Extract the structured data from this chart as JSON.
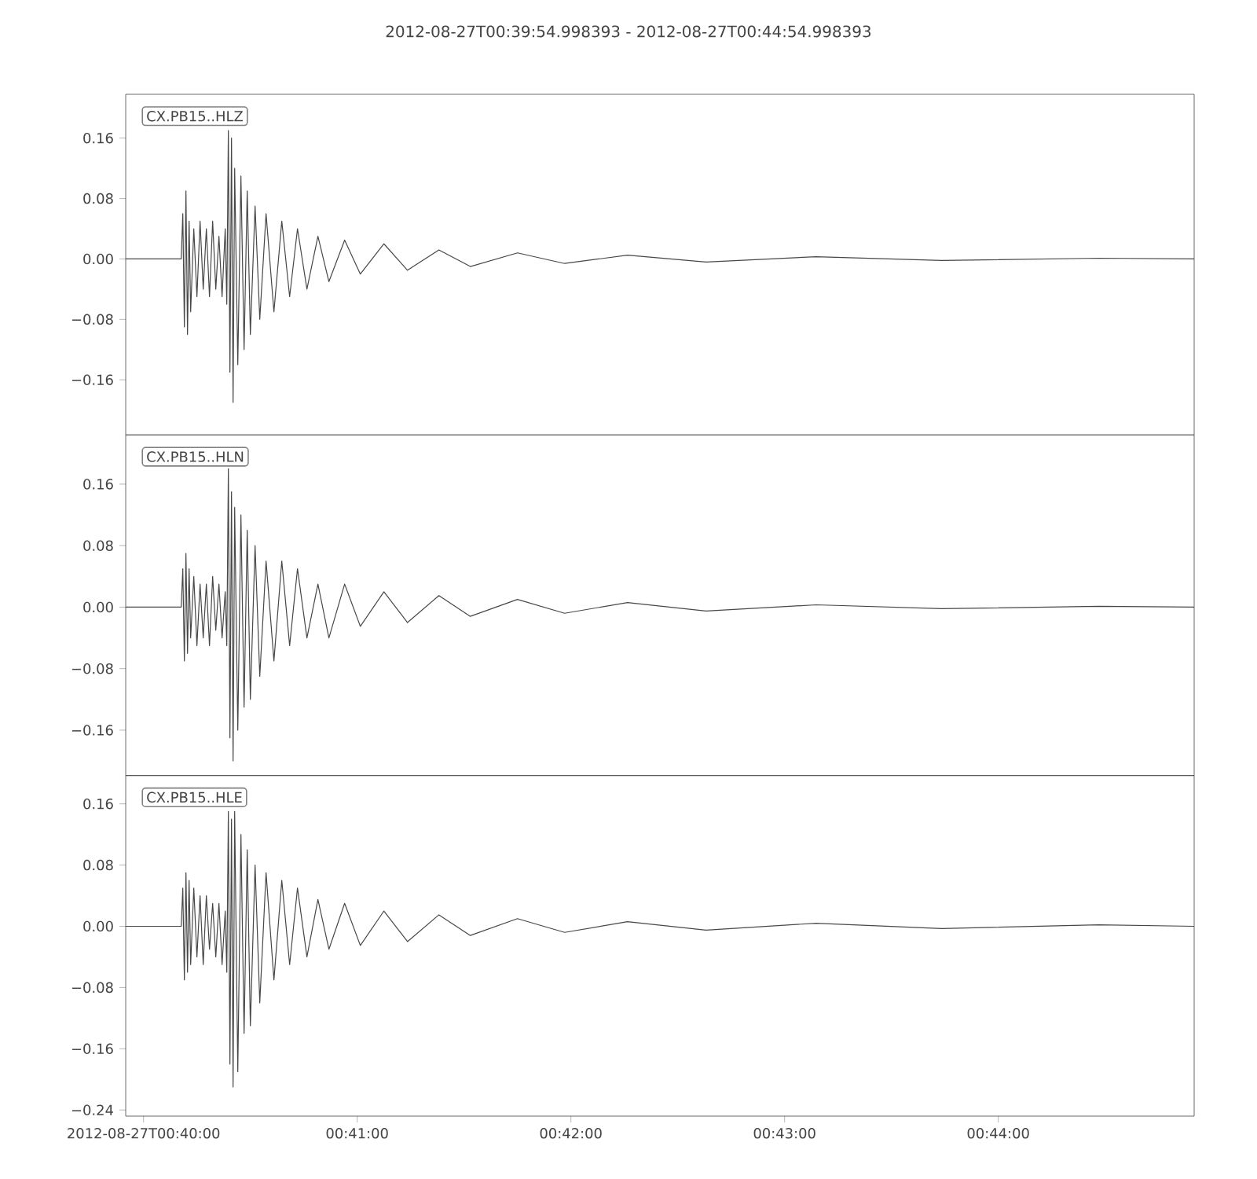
{
  "chart_data": [
    {
      "type": "line",
      "title": "2012-08-27T00:39:54.998393  -  2012-08-27T00:44:54.998393",
      "annotations": [
        "CX.PB15..HLZ"
      ],
      "tick_labels": "y",
      "xlim": [
        0.665277,
        0.748611
      ],
      "ylim": [
        -0.233,
        0.218
      ],
      "yticks": [
        {
          "value": -0.16,
          "label": "−0.16"
        },
        {
          "value": -0.08,
          "label": "−0.08"
        },
        {
          "value": 0,
          "label": "0.00"
        },
        {
          "value": 0.08,
          "label": "0.08"
        },
        {
          "value": 0.16,
          "label": "0.16"
        }
      ],
      "x": [
        0.665277,
        0.669608,
        0.669731,
        0.669853,
        0.669976,
        0.670098,
        0.670221,
        0.670343,
        0.670588,
        0.670833,
        0.671078,
        0.671323,
        0.671568,
        0.671813,
        0.672059,
        0.672304,
        0.672549,
        0.672794,
        0.673039,
        0.673162,
        0.673284,
        0.673407,
        0.673529,
        0.673652,
        0.673775,
        0.67402,
        0.674265,
        0.67451,
        0.674755,
        0.675,
        0.675368,
        0.675735,
        0.676225,
        0.676838,
        0.677451,
        0.678064,
        0.678676,
        0.679412,
        0.68027,
        0.681127,
        0.682353,
        0.683578,
        0.685417,
        0.687255,
        0.689706,
        0.692157,
        0.695833,
        0.69951,
        0.704412,
        0.710539,
        0.719118,
        0.728922,
        0.741176,
        0.748611
      ],
      "series": [
        {
          "color": "#474747",
          "values": [
            0,
            0,
            0.06,
            -0.09,
            0.09,
            -0.1,
            0.05,
            -0.07,
            0.04,
            -0.05,
            0.05,
            -0.04,
            0.04,
            -0.05,
            0.05,
            -0.04,
            0.03,
            -0.05,
            0.04,
            -0.06,
            0.17,
            -0.15,
            0.16,
            -0.19,
            0.12,
            -0.14,
            0.11,
            -0.12,
            0.09,
            -0.1,
            0.07,
            -0.08,
            0.06,
            -0.07,
            0.05,
            -0.05,
            0.04,
            -0.04,
            0.03,
            -0.03,
            0.025,
            -0.02,
            0.02,
            -0.015,
            0.012,
            -0.01,
            0.008,
            -0.006,
            0.005,
            -0.004,
            0.003,
            -0.002,
            0.001,
            0
          ]
        }
      ]
    },
    {
      "type": "line",
      "annotations": [
        "CX.PB15..HLN"
      ],
      "tick_labels": "y",
      "xlim": [
        0.665277,
        0.748611
      ],
      "ylim": [
        -0.219,
        0.224
      ],
      "yticks": [
        {
          "value": -0.16,
          "label": "−0.16"
        },
        {
          "value": -0.08,
          "label": "−0.08"
        },
        {
          "value": 0,
          "label": "0.00"
        },
        {
          "value": 0.08,
          "label": "0.08"
        },
        {
          "value": 0.16,
          "label": "0.16"
        }
      ],
      "x": [
        0.665277,
        0.669608,
        0.669731,
        0.669853,
        0.669976,
        0.670098,
        0.670221,
        0.670343,
        0.670588,
        0.670833,
        0.671078,
        0.671323,
        0.671568,
        0.671813,
        0.672059,
        0.672304,
        0.672549,
        0.672794,
        0.673039,
        0.673162,
        0.673284,
        0.673407,
        0.673529,
        0.673652,
        0.673775,
        0.67402,
        0.674265,
        0.67451,
        0.674755,
        0.675,
        0.675368,
        0.675735,
        0.676225,
        0.676838,
        0.677451,
        0.678064,
        0.678676,
        0.679412,
        0.68027,
        0.681127,
        0.682353,
        0.683578,
        0.685417,
        0.687255,
        0.689706,
        0.692157,
        0.695833,
        0.69951,
        0.704412,
        0.710539,
        0.719118,
        0.728922,
        0.741176,
        0.748611
      ],
      "series": [
        {
          "color": "#474747",
          "values": [
            0,
            0,
            0.05,
            -0.07,
            0.07,
            -0.06,
            0.05,
            -0.04,
            0.04,
            -0.05,
            0.03,
            -0.04,
            0.03,
            -0.05,
            0.04,
            -0.03,
            0.03,
            -0.04,
            0.02,
            -0.05,
            0.18,
            -0.17,
            0.15,
            -0.2,
            0.13,
            -0.16,
            0.12,
            -0.13,
            0.1,
            -0.12,
            0.08,
            -0.09,
            0.06,
            -0.07,
            0.06,
            -0.05,
            0.05,
            -0.04,
            0.03,
            -0.04,
            0.03,
            -0.025,
            0.02,
            -0.02,
            0.015,
            -0.012,
            0.01,
            -0.008,
            0.006,
            -0.005,
            0.003,
            -0.002,
            0.001,
            0
          ]
        }
      ]
    },
    {
      "type": "line",
      "annotations": [
        "CX.PB15..HLE"
      ],
      "xlim": [
        0.665277,
        0.748611
      ],
      "ylim": [
        -0.248,
        0.197
      ],
      "xticks": [
        {
          "value": 0.666667,
          "label": "2012-08-27T00:40:00"
        },
        {
          "value": 0.683333,
          "label": "00:41:00"
        },
        {
          "value": 0.7,
          "label": "00:42:00"
        },
        {
          "value": 0.716667,
          "label": "00:43:00"
        },
        {
          "value": 0.733333,
          "label": "00:44:00"
        }
      ],
      "yticks": [
        {
          "value": -0.24,
          "label": "−0.24"
        },
        {
          "value": -0.16,
          "label": "−0.16"
        },
        {
          "value": -0.08,
          "label": "−0.08"
        },
        {
          "value": 0,
          "label": "0.00"
        },
        {
          "value": 0.08,
          "label": "0.08"
        },
        {
          "value": 0.16,
          "label": "0.16"
        }
      ],
      "x": [
        0.665277,
        0.669608,
        0.669731,
        0.669853,
        0.669976,
        0.670098,
        0.670221,
        0.670343,
        0.670588,
        0.670833,
        0.671078,
        0.671323,
        0.671568,
        0.671813,
        0.672059,
        0.672304,
        0.672549,
        0.672794,
        0.673039,
        0.673162,
        0.673284,
        0.673407,
        0.673529,
        0.673652,
        0.673775,
        0.67402,
        0.674265,
        0.67451,
        0.674755,
        0.675,
        0.675368,
        0.675735,
        0.676225,
        0.676838,
        0.677451,
        0.678064,
        0.678676,
        0.679412,
        0.68027,
        0.681127,
        0.682353,
        0.683578,
        0.685417,
        0.687255,
        0.689706,
        0.692157,
        0.695833,
        0.69951,
        0.704412,
        0.710539,
        0.719118,
        0.728922,
        0.741176,
        0.748611
      ],
      "series": [
        {
          "color": "#474747",
          "values": [
            0,
            0,
            0.05,
            -0.07,
            0.07,
            -0.06,
            0.06,
            -0.05,
            0.05,
            -0.04,
            0.04,
            -0.05,
            0.04,
            -0.03,
            0.03,
            -0.04,
            0.03,
            -0.05,
            0.02,
            -0.06,
            0.15,
            -0.18,
            0.14,
            -0.21,
            0.15,
            -0.19,
            0.12,
            -0.14,
            0.1,
            -0.13,
            0.08,
            -0.1,
            0.07,
            -0.07,
            0.06,
            -0.05,
            0.05,
            -0.04,
            0.035,
            -0.03,
            0.03,
            -0.025,
            0.02,
            -0.02,
            0.015,
            -0.012,
            0.01,
            -0.008,
            0.006,
            -0.005,
            0.004,
            -0.003,
            0.002,
            0
          ]
        }
      ]
    }
  ]
}
